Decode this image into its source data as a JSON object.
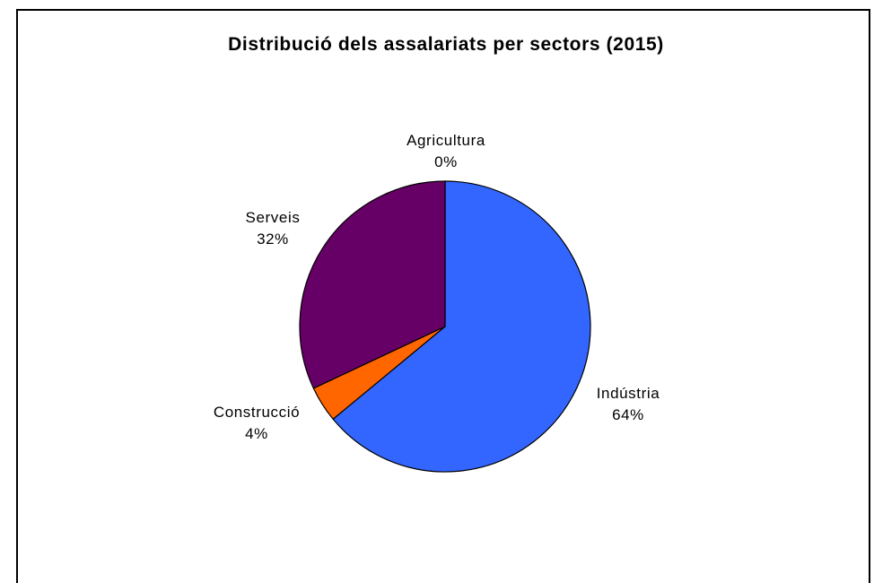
{
  "chart_data": {
    "type": "pie",
    "title": "Distribució dels assalariats per sectors (2015)",
    "slices": [
      {
        "name": "Agricultura",
        "value": 0,
        "label_pct": "0%",
        "color": "#ffffcc"
      },
      {
        "name": "Indústria",
        "value": 64,
        "label_pct": "64%",
        "color": "#3366ff"
      },
      {
        "name": "Construcció",
        "value": 4,
        "label_pct": "4%",
        "color": "#ff6600"
      },
      {
        "name": "Serveis",
        "value": 32,
        "label_pct": "32%",
        "color": "#660066"
      }
    ],
    "start": "top",
    "direction": "clockwise"
  }
}
